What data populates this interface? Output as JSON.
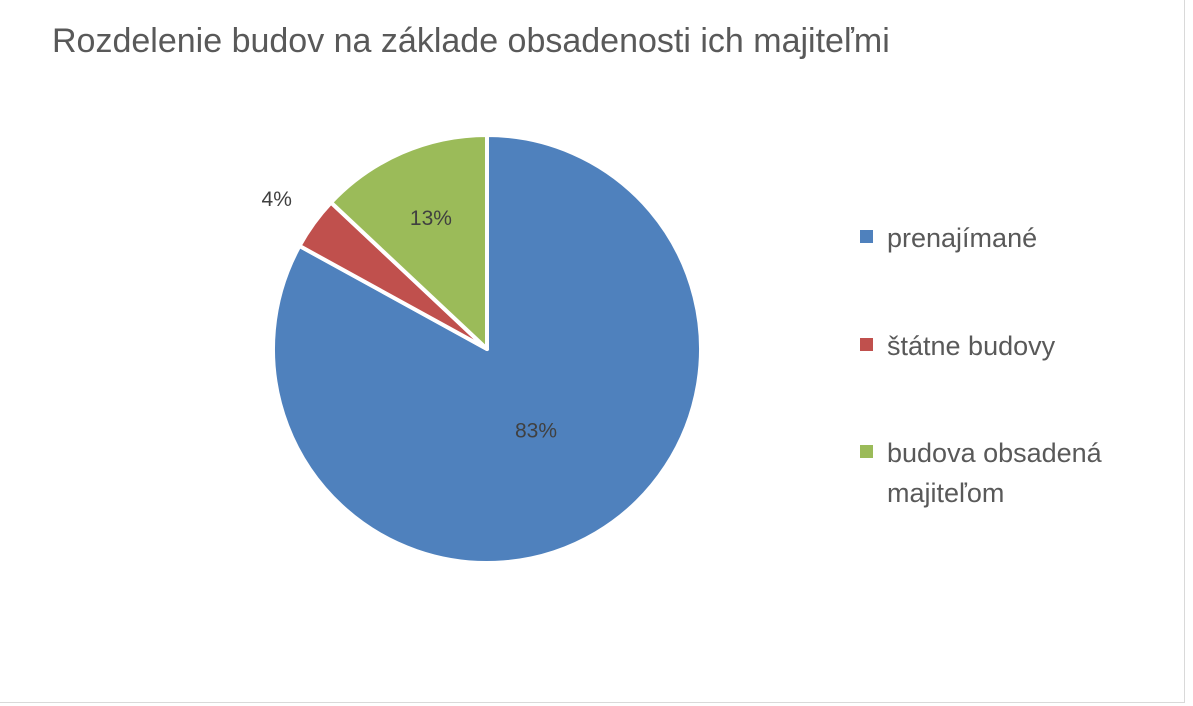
{
  "chart_data": {
    "type": "pie",
    "title": "Rozdelenie budov na základe obsadenosti ich majiteľmi",
    "slices": [
      {
        "label": "prenajímané",
        "value": 83,
        "value_label": "83%",
        "color": "#4f81bd"
      },
      {
        "label": "štátne budovy",
        "value": 4,
        "value_label": "4%",
        "color": "#c0504d"
      },
      {
        "label": "budova obsadená majiteľom",
        "value": 13,
        "value_label": "13%",
        "color": "#9bbb59"
      }
    ],
    "start_angle": "12 o'clock",
    "direction": "clockwise",
    "legend": "right"
  }
}
